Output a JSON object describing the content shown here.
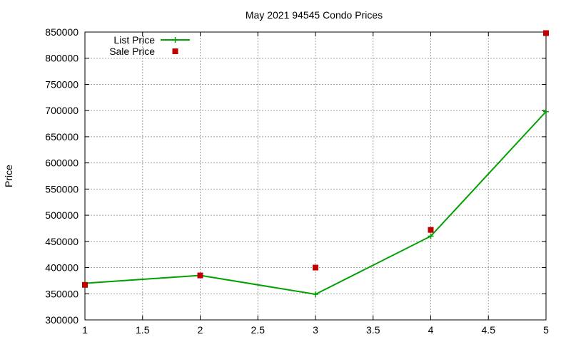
{
  "chart_data": {
    "type": "line",
    "title": "May 2021 94545 Condo Prices",
    "xlabel": "",
    "ylabel": "Price",
    "xlim": [
      1,
      5
    ],
    "ylim": [
      300000,
      850000
    ],
    "x_ticks": [
      1,
      1.5,
      2,
      2.5,
      3,
      3.5,
      4,
      4.5,
      5
    ],
    "x_tick_labels": [
      "1",
      "1.5",
      "2",
      "2.5",
      "3",
      "3.5",
      "4",
      "4.5",
      "5"
    ],
    "y_ticks": [
      300000,
      350000,
      400000,
      450000,
      500000,
      550000,
      600000,
      650000,
      700000,
      750000,
      800000,
      850000
    ],
    "y_tick_labels": [
      "300000",
      "350000",
      "400000",
      "450000",
      "500000",
      "550000",
      "600000",
      "650000",
      "700000",
      "750000",
      "800000",
      "850000"
    ],
    "grid": true,
    "legend_position": "top-left",
    "series": [
      {
        "name": "List Price",
        "style": "linespoints",
        "color": "#00a000",
        "marker": "plus",
        "x": [
          1,
          2,
          3,
          4,
          5
        ],
        "y": [
          370000,
          385000,
          349000,
          460000,
          698000
        ]
      },
      {
        "name": "Sale Price",
        "style": "points",
        "color": "#c00000",
        "marker": "square",
        "x": [
          1,
          2,
          3,
          4,
          5
        ],
        "y": [
          367000,
          385000,
          400000,
          472000,
          848000
        ]
      }
    ]
  }
}
